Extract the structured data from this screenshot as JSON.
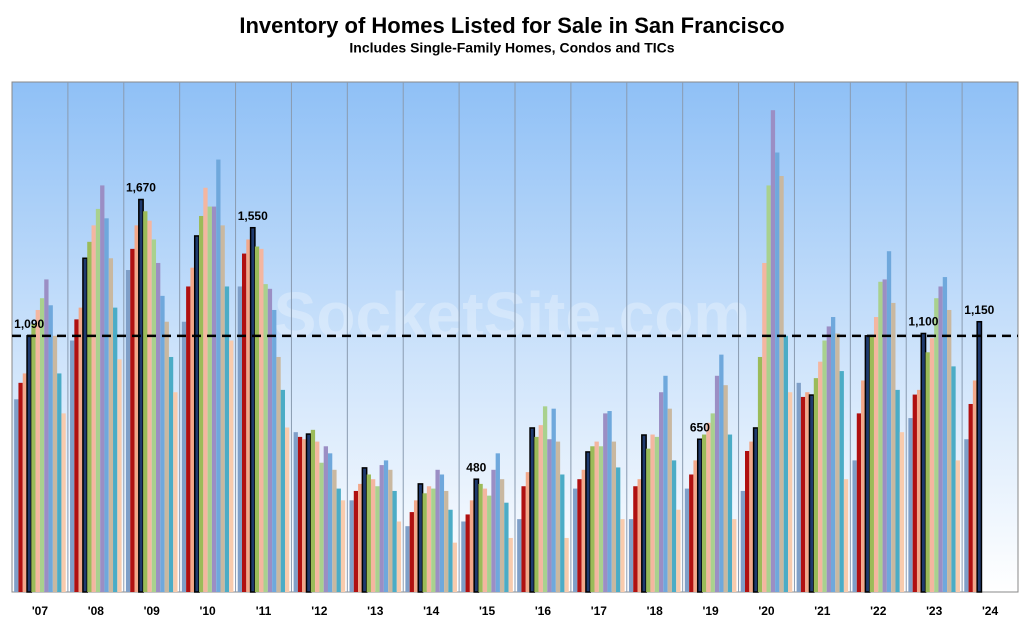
{
  "chart_data": {
    "type": "bar",
    "title": "Inventory of Homes Listed for Sale in San Francisco",
    "subtitle": "Includes Single-Family Homes, Condos and TICs",
    "watermark": "SocketSite.com",
    "categories": [
      "'07",
      "'08",
      "'09",
      "'10",
      "'11",
      "'12",
      "'13",
      "'14",
      "'15",
      "'16",
      "'17",
      "'18",
      "'19",
      "'20",
      "'21",
      "'22",
      "'23",
      "'24"
    ],
    "ylim": [
      0,
      2170
    ],
    "reference_line": 1090,
    "series": [
      {
        "color": "#7f9fc8",
        "values": [
          820,
          1070,
          1370,
          1150,
          1300,
          680,
          390,
          280,
          300,
          310,
          440,
          310,
          440,
          430,
          890,
          560,
          740,
          650
        ]
      },
      {
        "color": "#b01010",
        "values": [
          890,
          1160,
          1460,
          1300,
          1440,
          660,
          430,
          340,
          330,
          450,
          480,
          450,
          500,
          600,
          830,
          760,
          840,
          800
        ]
      },
      {
        "color": "#f2a88a",
        "values": [
          930,
          1210,
          1560,
          1380,
          1500,
          650,
          460,
          390,
          390,
          510,
          520,
          480,
          560,
          640,
          850,
          900,
          860,
          900
        ]
      },
      {
        "color": "#1f3a6e",
        "highlight": true,
        "values": [
          1090,
          1420,
          1670,
          1515,
          1550,
          672,
          528,
          460,
          480,
          698,
          596,
          668,
          650,
          698,
          838,
          1090,
          1100,
          1150
        ],
        "value_labels": [
          "1,090",
          null,
          "1,670",
          null,
          "1,550",
          null,
          null,
          null,
          "480",
          null,
          null,
          null,
          "650",
          null,
          null,
          null,
          "1,100",
          "1,150"
        ]
      },
      {
        "color": "#9bbb59",
        "values": [
          1140,
          1490,
          1620,
          1600,
          1470,
          690,
          500,
          420,
          460,
          660,
          620,
          610,
          670,
          1000,
          910,
          1090,
          1020,
          null
        ]
      },
      {
        "color": "#f4b6a0",
        "values": [
          1200,
          1560,
          1580,
          1720,
          1460,
          640,
          480,
          450,
          440,
          710,
          640,
          670,
          720,
          1400,
          980,
          1170,
          1080,
          null
        ]
      },
      {
        "color": "#a9d18e",
        "values": [
          1250,
          1630,
          1500,
          1640,
          1310,
          550,
          450,
          440,
          410,
          790,
          620,
          660,
          760,
          1730,
          1070,
          1320,
          1250,
          null
        ]
      },
      {
        "color": "#9b8ec4",
        "values": [
          1330,
          1730,
          1400,
          1640,
          1290,
          620,
          540,
          520,
          520,
          650,
          760,
          850,
          920,
          2050,
          1130,
          1330,
          1300,
          null
        ]
      },
      {
        "color": "#6fa8dc",
        "values": [
          1220,
          1590,
          1260,
          1840,
          1200,
          590,
          560,
          500,
          590,
          780,
          770,
          920,
          1010,
          1870,
          1170,
          1450,
          1340,
          null
        ]
      },
      {
        "color": "#c9b8a0",
        "values": [
          1090,
          1420,
          1150,
          1560,
          1000,
          520,
          520,
          430,
          480,
          640,
          640,
          780,
          880,
          1770,
          1100,
          1230,
          1200,
          null
        ]
      },
      {
        "color": "#4bacc6",
        "values": [
          930,
          1210,
          1000,
          1300,
          860,
          440,
          430,
          350,
          380,
          500,
          530,
          560,
          670,
          1090,
          940,
          860,
          960,
          null
        ]
      },
      {
        "color": "#f8cbad",
        "values": [
          760,
          990,
          850,
          1070,
          700,
          390,
          300,
          210,
          230,
          230,
          310,
          350,
          310,
          850,
          480,
          680,
          560,
          null
        ]
      }
    ]
  }
}
